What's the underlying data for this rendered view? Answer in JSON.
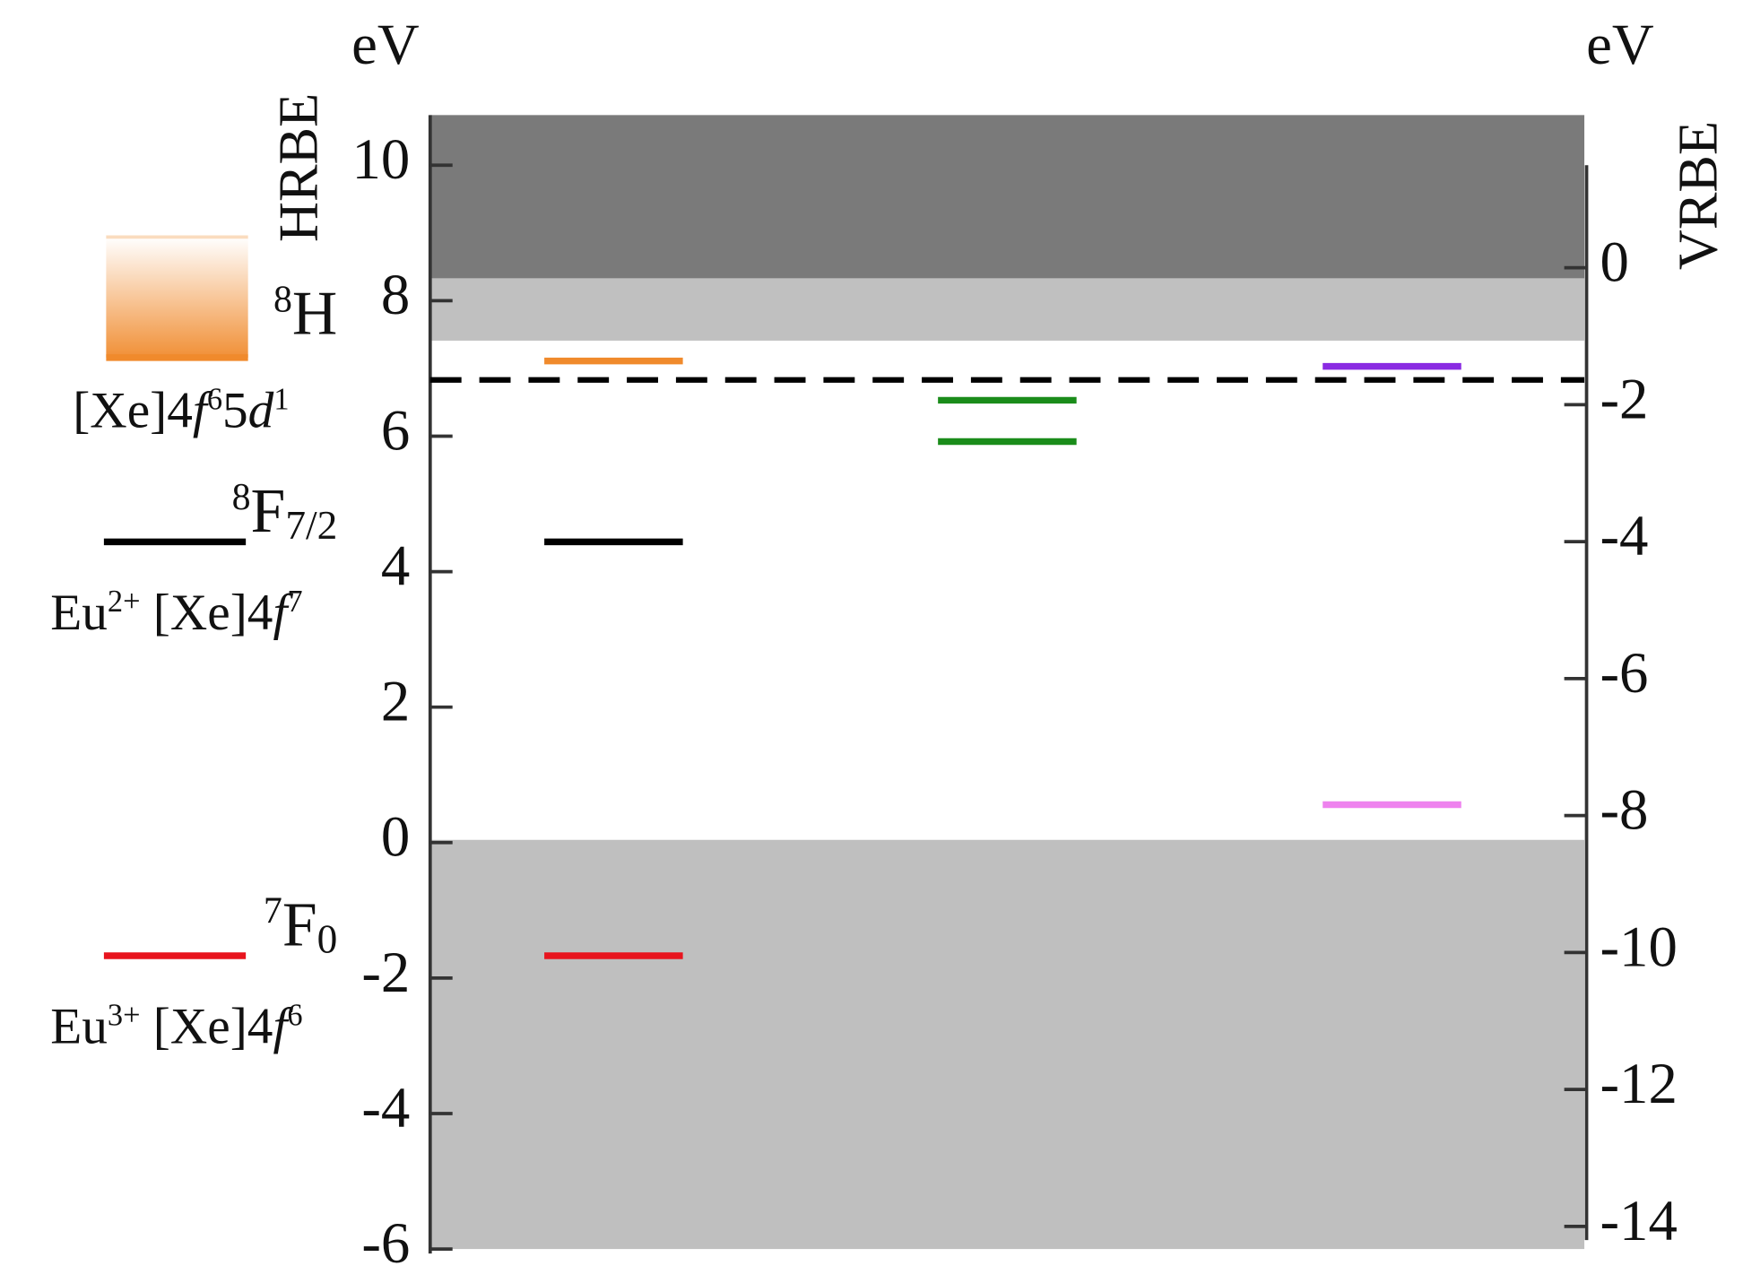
{
  "chart_data": {
    "type": "energy-levels",
    "y_unit": "eV",
    "y_label": "HRBE",
    "y2_unit": "eV",
    "y2_label": "VRBE",
    "ylim": [
      -6,
      10.74
    ],
    "yticks": [
      -6,
      -4,
      -2,
      0,
      2,
      4,
      6,
      8,
      10
    ],
    "y2lim": [
      -14.33,
      2.23
    ],
    "y2ticks": [
      -14,
      -12,
      -10,
      -8,
      -6,
      -4,
      -2,
      0
    ],
    "bands": [
      {
        "values": [
          8.33,
          10.74
        ],
        "color": "#7a7a7a"
      },
      {
        "values": [
          7.41,
          8.33
        ],
        "color": "#c0c0c0"
      },
      {
        "values": [
          -6,
          0.04
        ],
        "color": "#bfbfbf"
      }
    ],
    "dashed_line": {
      "value": 6.83,
      "color": "#000000"
    },
    "columns": [
      [
        {
          "value": 7.11,
          "color": "#f08a2c"
        },
        {
          "value": 4.44,
          "color": "#000000"
        },
        {
          "value": -1.67,
          "color": "#e8141e"
        }
      ],
      [
        {
          "value": 6.53,
          "color": "#1a8c1a"
        },
        {
          "value": 5.92,
          "color": "#1a8c1a"
        }
      ],
      [
        {
          "value": 7.03,
          "color": "#8a2be2"
        },
        {
          "value": 0.56,
          "color": "#ee82ee"
        }
      ]
    ],
    "key": [
      {
        "kind": "box",
        "values": [
          7.16,
          8.94
        ],
        "color": "#f08a2c",
        "label": [
          {
            "text": "8",
            "style": "sup"
          },
          {
            "text": "H"
          }
        ],
        "sublabel": [
          {
            "text": "[Xe]4"
          },
          {
            "text": "f",
            "style": "italic"
          },
          {
            "text": "6",
            "style": "sup"
          },
          {
            "text": "5"
          },
          {
            "text": "d",
            "style": "italic"
          },
          {
            "text": "1",
            "style": "sup"
          }
        ]
      },
      {
        "kind": "line",
        "value": 4.44,
        "color": "#000000",
        "label": [
          {
            "text": "8",
            "style": "sup"
          },
          {
            "text": "F"
          },
          {
            "text": "7/2",
            "style": "sub"
          }
        ],
        "sublabel": [
          {
            "text": "Eu"
          },
          {
            "text": "2+",
            "style": "sup"
          },
          {
            "text": " [Xe]4"
          },
          {
            "text": "f",
            "style": "italic"
          },
          {
            "text": "7",
            "style": "sup"
          }
        ]
      },
      {
        "kind": "line",
        "value": -1.67,
        "color": "#e8141e",
        "label": [
          {
            "text": "7",
            "style": "sup"
          },
          {
            "text": "F"
          },
          {
            "text": "0",
            "style": "sub"
          }
        ],
        "sublabel": [
          {
            "text": "Eu"
          },
          {
            "text": "3+",
            "style": "sup"
          },
          {
            "text": " [Xe]4"
          },
          {
            "text": "f",
            "style": "italic"
          },
          {
            "text": "6",
            "style": "sup"
          }
        ]
      }
    ]
  }
}
